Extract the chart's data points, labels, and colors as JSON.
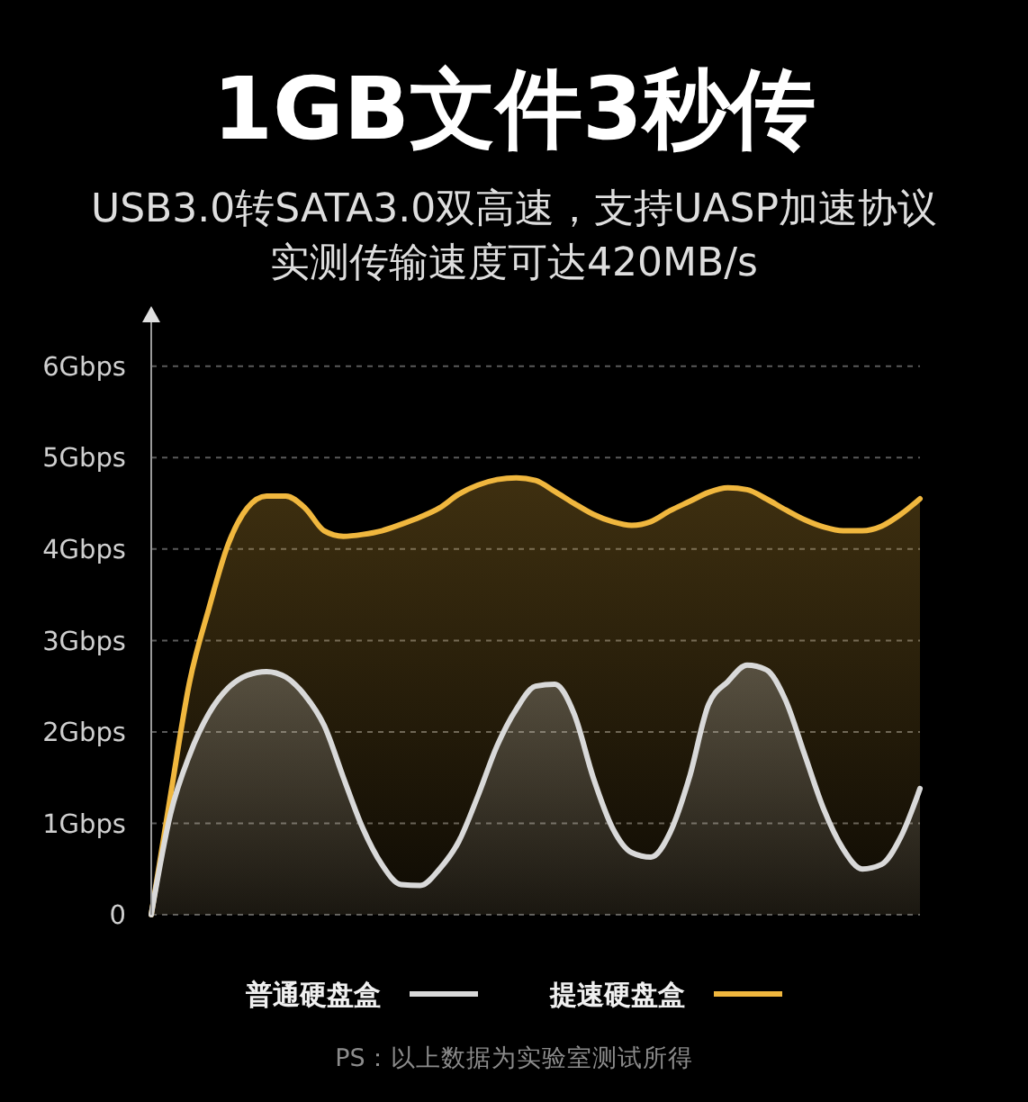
{
  "chart_data": {
    "type": "area",
    "title": "1GB文件3秒传",
    "subtitle": "USB3.0转SATA3.0双高速，支持UASP加速协议实测传输速度可达420MB/s",
    "categories": [
      null,
      null,
      null,
      null,
      null,
      null,
      null,
      null,
      null,
      null,
      null,
      null,
      null,
      null,
      null,
      null,
      null,
      null,
      null,
      null,
      null,
      null,
      null,
      null,
      null,
      null,
      null,
      null,
      null,
      null,
      null,
      null,
      null,
      null,
      null,
      null,
      null,
      null,
      null,
      null,
      null
    ],
    "series": [
      {
        "name": "普通硬盘盒",
        "color": "#d9d9d9",
        "values": [
          0,
          1.1,
          1.75,
          2.2,
          2.48,
          2.62,
          2.66,
          2.6,
          2.4,
          2.07,
          1.5,
          0.95,
          0.55,
          0.33,
          0.32,
          0.5,
          0.8,
          1.3,
          1.85,
          2.25,
          2.5,
          2.52,
          2.2,
          1.5,
          0.95,
          0.68,
          0.63,
          0.9,
          1.5,
          2.3,
          2.55,
          2.73,
          2.68,
          2.35,
          1.75,
          1.15,
          0.72,
          0.5,
          0.55,
          0.85,
          1.38
        ]
      },
      {
        "name": "提速硬盘盒",
        "color": "#f0b73e",
        "values": [
          0,
          1.3,
          2.55,
          3.35,
          4.05,
          4.45,
          4.58,
          4.58,
          4.45,
          4.2,
          4.14,
          4.16,
          4.2,
          4.27,
          4.35,
          4.45,
          4.6,
          4.7,
          4.76,
          4.78,
          4.75,
          4.63,
          4.5,
          4.38,
          4.3,
          4.26,
          4.3,
          4.42,
          4.52,
          4.62,
          4.67,
          4.65,
          4.55,
          4.43,
          4.32,
          4.24,
          4.2,
          4.2,
          4.25,
          4.38,
          4.55
        ]
      }
    ],
    "ylim": [
      0,
      6.5
    ],
    "yticks": [
      0,
      {
        "value": 1,
        "label": "1Gbps"
      },
      {
        "value": 2,
        "label": "2Gbps"
      },
      {
        "value": 3,
        "label": "3Gbps"
      },
      {
        "value": 4,
        "label": "4Gbps"
      },
      {
        "value": 5,
        "label": "5Gbps"
      },
      {
        "value": 6,
        "label": "6Gbps"
      }
    ],
    "grid": "y",
    "legend": "bottom",
    "tick_labels": "y",
    "annotations": [
      "PS：以上数据为实验室测试所得"
    ]
  }
}
